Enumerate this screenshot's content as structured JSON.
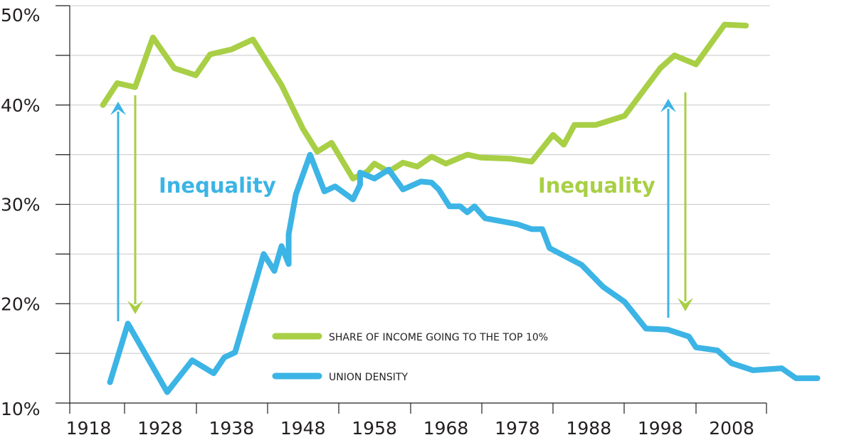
{
  "chart_data": {
    "type": "line",
    "title": "",
    "xlabel": "",
    "ylabel": "",
    "xlim": [
      1918,
      2012
    ],
    "ylim": [
      10,
      50
    ],
    "grid": "horizontal",
    "legend_position": "bottom-right",
    "x_ticks": [
      {
        "value": 1918,
        "label": "1918"
      },
      {
        "value": 1928,
        "label": "1928"
      },
      {
        "value": 1938,
        "label": "1938"
      },
      {
        "value": 1948,
        "label": "1948"
      },
      {
        "value": 1958,
        "label": "1958"
      },
      {
        "value": 1968,
        "label": "1968"
      },
      {
        "value": 1978,
        "label": "1978"
      },
      {
        "value": 1988,
        "label": "1988"
      },
      {
        "value": 1998,
        "label": "1998"
      },
      {
        "value": 2008,
        "label": "2008"
      }
    ],
    "y_ticks": [
      {
        "value": 10,
        "label": "10%"
      },
      {
        "value": 20,
        "label": "20%"
      },
      {
        "value": 30,
        "label": "30%"
      },
      {
        "value": 40,
        "label": "40%"
      },
      {
        "value": 50,
        "label": "50%"
      }
    ],
    "minor_gridlines": [
      15,
      25,
      35,
      45
    ],
    "series": [
      {
        "name": "SHARE OF INCOME GOING TO THE TOP 10%",
        "color": "#a8cf45",
        "points": [
          [
            1920,
            40.0
          ],
          [
            1922,
            42.2
          ],
          [
            1924.5,
            41.8
          ],
          [
            1927,
            46.8
          ],
          [
            1930,
            43.7
          ],
          [
            1933,
            43.0
          ],
          [
            1935,
            45.1
          ],
          [
            1938,
            45.6
          ],
          [
            1941,
            46.6
          ],
          [
            1945,
            42.0
          ],
          [
            1948,
            37.6
          ],
          [
            1950,
            35.3
          ],
          [
            1952,
            36.2
          ],
          [
            1955,
            32.6
          ],
          [
            1957,
            33.3
          ],
          [
            1958,
            34.1
          ],
          [
            1960,
            33.3
          ],
          [
            1962,
            34.2
          ],
          [
            1964,
            33.8
          ],
          [
            1966,
            34.8
          ],
          [
            1968,
            34.1
          ],
          [
            1971,
            35.0
          ],
          [
            1973,
            34.7
          ],
          [
            1977,
            34.6
          ],
          [
            1980,
            34.3
          ],
          [
            1983,
            37.0
          ],
          [
            1984.5,
            36.0
          ],
          [
            1986,
            38.0
          ],
          [
            1989,
            38.0
          ],
          [
            1993,
            38.9
          ],
          [
            1998,
            43.7
          ],
          [
            2000,
            45.0
          ],
          [
            2003,
            44.1
          ],
          [
            2007,
            48.1
          ],
          [
            2010,
            48.0
          ]
        ]
      },
      {
        "name": "UNION DENSITY",
        "color": "#3cb4e5",
        "points": [
          [
            1921,
            12.1
          ],
          [
            1923.5,
            18.0
          ],
          [
            1929,
            11.1
          ],
          [
            1932.5,
            14.3
          ],
          [
            1935.5,
            13.0
          ],
          [
            1937,
            14.6
          ],
          [
            1938.5,
            15.1
          ],
          [
            1942.5,
            25.0
          ],
          [
            1944,
            23.3
          ],
          [
            1945,
            25.8
          ],
          [
            1946,
            24.0
          ],
          [
            1946,
            27.0
          ],
          [
            1947,
            31.0
          ],
          [
            1949,
            35.0
          ],
          [
            1951,
            31.3
          ],
          [
            1952.5,
            31.8
          ],
          [
            1955,
            30.5
          ],
          [
            1956,
            32.0
          ],
          [
            1956,
            33.2
          ],
          [
            1958,
            32.6
          ],
          [
            1960,
            33.5
          ],
          [
            1962,
            31.5
          ],
          [
            1964.5,
            32.3
          ],
          [
            1966,
            32.2
          ],
          [
            1967,
            31.5
          ],
          [
            1968.5,
            29.8
          ],
          [
            1970,
            29.8
          ],
          [
            1971,
            29.2
          ],
          [
            1972,
            29.8
          ],
          [
            1973.5,
            28.6
          ],
          [
            1978,
            28.0
          ],
          [
            1980,
            27.5
          ],
          [
            1981.5,
            27.5
          ],
          [
            1982.5,
            25.6
          ],
          [
            1987,
            23.9
          ],
          [
            1990,
            21.7
          ],
          [
            1993,
            20.2
          ],
          [
            1996,
            17.5
          ],
          [
            1999,
            17.4
          ],
          [
            2002,
            16.7
          ],
          [
            2003,
            15.6
          ],
          [
            2006,
            15.3
          ],
          [
            2008,
            14.0
          ],
          [
            2011,
            13.3
          ],
          [
            2015,
            13.5
          ],
          [
            2017,
            12.5
          ],
          [
            2020,
            12.5
          ]
        ]
      }
    ],
    "annotations": [
      {
        "text": "Inequality",
        "color": "#3cb4e5"
      },
      {
        "text": "Inequality",
        "color": "#a8cf45"
      }
    ]
  }
}
